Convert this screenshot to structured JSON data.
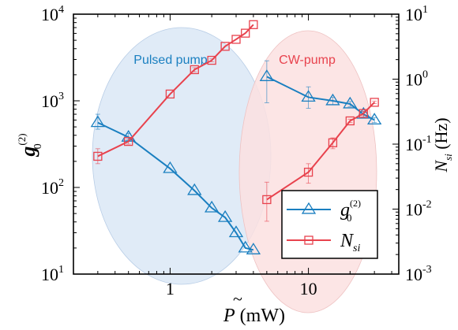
{
  "chart_data": {
    "type": "scatter",
    "x_scale": "log",
    "y_left_scale": "log",
    "y_right_scale": "log",
    "xlim": [
      0.2,
      45
    ],
    "ylim_left": [
      10,
      10000
    ],
    "ylim_right": [
      0.001,
      10
    ],
    "x_ticks": [
      1,
      10
    ],
    "x_tick_labels": [
      "1",
      "10"
    ],
    "y_left_ticks": [
      {
        "value": 10,
        "base": "10",
        "exp": "1"
      },
      {
        "value": 100,
        "base": "10",
        "exp": "2"
      },
      {
        "value": 1000,
        "base": "10",
        "exp": "3"
      },
      {
        "value": 10000,
        "base": "10",
        "exp": "4"
      }
    ],
    "y_right_ticks": [
      {
        "value": 0.001,
        "base": "10",
        "exp": "-3"
      },
      {
        "value": 0.01,
        "base": "10",
        "exp": "-2"
      },
      {
        "value": 0.1,
        "base": "10",
        "exp": "-1"
      },
      {
        "value": 1,
        "base": "10",
        "exp": "0"
      },
      {
        "value": 10,
        "base": "10",
        "exp": "1"
      }
    ],
    "xlabel": {
      "symbol": "P",
      "accent": "~",
      "unit": "(mW)"
    },
    "ylabel_left": {
      "symbol": "g",
      "sup": "(2)",
      "sub": "0"
    },
    "ylabel_right": {
      "symbol": "N",
      "sub": "si",
      "unit": "(Hz)"
    },
    "regions": [
      {
        "label": "Pulsed pump",
        "color": "#1a7fc0",
        "fill": "#dde9f6"
      },
      {
        "label": "CW-pump",
        "color": "#e8424d",
        "fill": "#fbe1e1"
      }
    ],
    "series": [
      {
        "name_symbol": "g",
        "name_sup": "(2)",
        "name_sub": "0",
        "axis": "left",
        "marker": "triangle",
        "color": "#1a7fc0",
        "segments": [
          {
            "x": [
              0.3,
              0.5,
              1.0,
              1.5,
              2.0,
              2.5,
              3.0,
              3.5,
              4.0
            ],
            "y": [
              560,
              380,
              165,
              92,
              58,
              45,
              30,
              20,
              19
            ],
            "err_low": [
              470,
              350,
              165,
              92,
              58,
              45,
              30,
              20,
              19
            ],
            "err_high": [
              700,
              420,
              165,
              92,
              58,
              45,
              30,
              20,
              19
            ]
          },
          {
            "x": [
              5,
              10,
              15,
              20,
              25,
              30
            ],
            "y": [
              1900,
              1100,
              1000,
              920,
              700,
              600
            ],
            "err_low": [
              950,
              820,
              900,
              860,
              650,
              560
            ],
            "err_high": [
              2900,
              1450,
              1100,
              980,
              760,
              640
            ]
          }
        ]
      },
      {
        "name_symbol": "N",
        "name_sub": "si",
        "axis": "right",
        "marker": "square",
        "color": "#e8424d",
        "segments": [
          {
            "x": [
              0.3,
              0.5,
              1.0,
              1.5,
              2.0,
              2.5,
              3.0,
              3.5,
              4.0
            ],
            "y": [
              0.065,
              0.11,
              0.59,
              1.4,
              1.95,
              3.2,
              4.1,
              5.1,
              6.9
            ],
            "err_low": [
              0.05,
              0.1,
              0.59,
              1.3,
              1.85,
              3.2,
              4.1,
              5.1,
              6.9
            ],
            "err_high": [
              0.085,
              0.12,
              0.59,
              1.5,
              2.05,
              3.2,
              4.1,
              5.1,
              6.9
            ]
          },
          {
            "x": [
              5,
              10,
              15,
              20,
              25,
              30
            ],
            "y": [
              0.014,
              0.037,
              0.105,
              0.228,
              0.296,
              0.44
            ],
            "err_low": [
              0.0065,
              0.025,
              0.085,
              0.215,
              0.275,
              0.42
            ],
            "err_high": [
              0.026,
              0.05,
              0.125,
              0.242,
              0.318,
              0.46
            ]
          }
        ]
      }
    ]
  }
}
